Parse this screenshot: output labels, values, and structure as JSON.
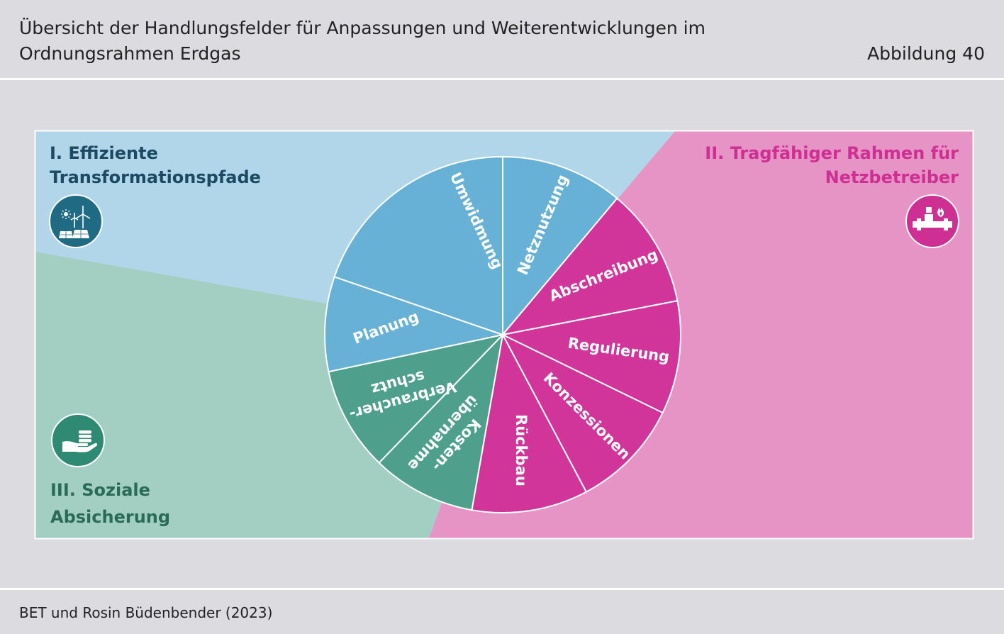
{
  "header": {
    "title_line1": "Übersicht der Handlungsfelder für Anpassungen und Weiterentwicklungen im",
    "title_line2": "Ordnungsrahmen Erdgas",
    "figure_number": "Abbildung 40"
  },
  "source": "BET und Rosin Büdenbender (2023)",
  "areas": [
    {
      "title_line1": "I. Effiziente",
      "title_line2": "Transformationspfade",
      "icon": "solar-wind-icon",
      "color": "#b1d6e9",
      "text_color": "#1c4a63",
      "icon_color": "#1f6b84"
    },
    {
      "title_line1": "II. Tragfähiger Rahmen für",
      "title_line2": "Netzbetreiber",
      "icon": "gas-pipeline-icon",
      "color": "#e693c6",
      "text_color": "#cd2f92",
      "icon_color": "#cd2f92"
    },
    {
      "title_line1": "III. Soziale",
      "title_line2": "Absicherung",
      "icon": "hand-coins-icon",
      "color": "#a2cfc2",
      "text_color": "#2a6b57",
      "icon_color": "#2e8a72"
    }
  ],
  "wheel": {
    "colors": {
      "blue": "#67b0d6",
      "magenta": "#d1359a",
      "green": "#4ea08d"
    },
    "segments": [
      {
        "label_lines": [
          "Netznutzung"
        ],
        "group": "blue"
      },
      {
        "label_lines": [
          "Abschreibung"
        ],
        "group": "magenta"
      },
      {
        "label_lines": [
          "Regulierung"
        ],
        "group": "magenta"
      },
      {
        "label_lines": [
          "Konzessionen"
        ],
        "group": "magenta"
      },
      {
        "label_lines": [
          "Rückbau"
        ],
        "group": "magenta"
      },
      {
        "label_lines": [
          "Kosten-",
          "übernahme"
        ],
        "group": "green"
      },
      {
        "label_lines": [
          "Verbraucher-",
          "schutz"
        ],
        "group": "green"
      },
      {
        "label_lines": [
          "Planung"
        ],
        "group": "blue"
      },
      {
        "label_lines": [
          "Umwidmung"
        ],
        "group": "blue"
      }
    ]
  }
}
